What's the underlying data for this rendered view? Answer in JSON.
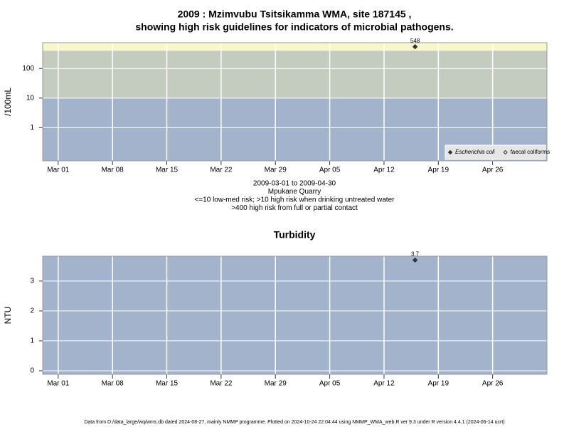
{
  "chart_data": [
    {
      "type": "scatter",
      "title": [
        "2009 : Mzimvubu Tsitsikamma WMA, site 187145 ,",
        "showing high risk guidelines for indicators of microbial pathogens."
      ],
      "ylabel": "/100mL",
      "notes": [
        "2009-03-01 to 2009-04-30",
        "Mpukane Quarry",
        "<=10 low-med risk; >10 high risk when drinking untreated water",
        ">400 high risk from full or partial contact"
      ],
      "x": [
        "2009-04-16"
      ],
      "series": [
        {
          "name": "Escherichia coli",
          "color": "#333333",
          "marker": "filled",
          "values": [
            548
          ]
        },
        {
          "name": "faecal coliforms",
          "color": "#333333",
          "marker": "open",
          "values": [
            null
          ]
        }
      ],
      "log_y": true,
      "ylim": [
        0.075,
        750
      ],
      "yticks": [
        1,
        10,
        100
      ],
      "xlim": [
        "2009-02-27",
        "2009-05-03"
      ],
      "xticks": [
        {
          "value": "2009-03-01",
          "label": "Mar 01"
        },
        {
          "value": "2009-03-08",
          "label": "Mar 08"
        },
        {
          "value": "2009-03-15",
          "label": "Mar 15"
        },
        {
          "value": "2009-03-22",
          "label": "Mar 22"
        },
        {
          "value": "2009-03-29",
          "label": "Mar 29"
        },
        {
          "value": "2009-04-05",
          "label": "Apr 05"
        },
        {
          "value": "2009-04-12",
          "label": "Apr 12"
        },
        {
          "value": "2009-04-19",
          "label": "Apr 19"
        },
        {
          "value": "2009-04-26",
          "label": "Apr 26"
        }
      ],
      "bands": [
        {
          "to": 10,
          "color": "#a3b3cc"
        },
        {
          "to": 400,
          "color": "#c4ccc0"
        }
      ],
      "above_band_color": "#f8f6cc",
      "grid": true,
      "legend": "bottom-right"
    },
    {
      "type": "scatter",
      "title": "Turbidity",
      "ylabel": "NTU",
      "x": [
        "2009-04-16"
      ],
      "series": [
        {
          "color": "#333333",
          "marker": "filled",
          "values": [
            3.7
          ]
        }
      ],
      "log_y": false,
      "ylim": [
        -0.12,
        3.83
      ],
      "yticks": [
        0,
        1,
        2,
        3
      ],
      "xlim": [
        "2009-02-27",
        "2009-05-03"
      ],
      "xticks": [
        {
          "value": "2009-03-01",
          "label": "Mar 01"
        },
        {
          "value": "2009-03-08",
          "label": "Mar 08"
        },
        {
          "value": "2009-03-15",
          "label": "Mar 15"
        },
        {
          "value": "2009-03-22",
          "label": "Mar 22"
        },
        {
          "value": "2009-03-29",
          "label": "Mar 29"
        },
        {
          "value": "2009-04-05",
          "label": "Apr 05"
        },
        {
          "value": "2009-04-12",
          "label": "Apr 12"
        },
        {
          "value": "2009-04-19",
          "label": "Apr 19"
        },
        {
          "value": "2009-04-26",
          "label": "Apr 26"
        }
      ],
      "background_color": "#a3b3cc",
      "grid": true
    }
  ],
  "footer": "Data from D:/data_large/wq/wms.db dated 2024-08-27, mainly NMMP programme. Plotted on 2024-10-24 22:04:44 using NMMP_WMA_web.R ver 9.3 under R version 4.4.1 (2024-06-14 ucrt)"
}
